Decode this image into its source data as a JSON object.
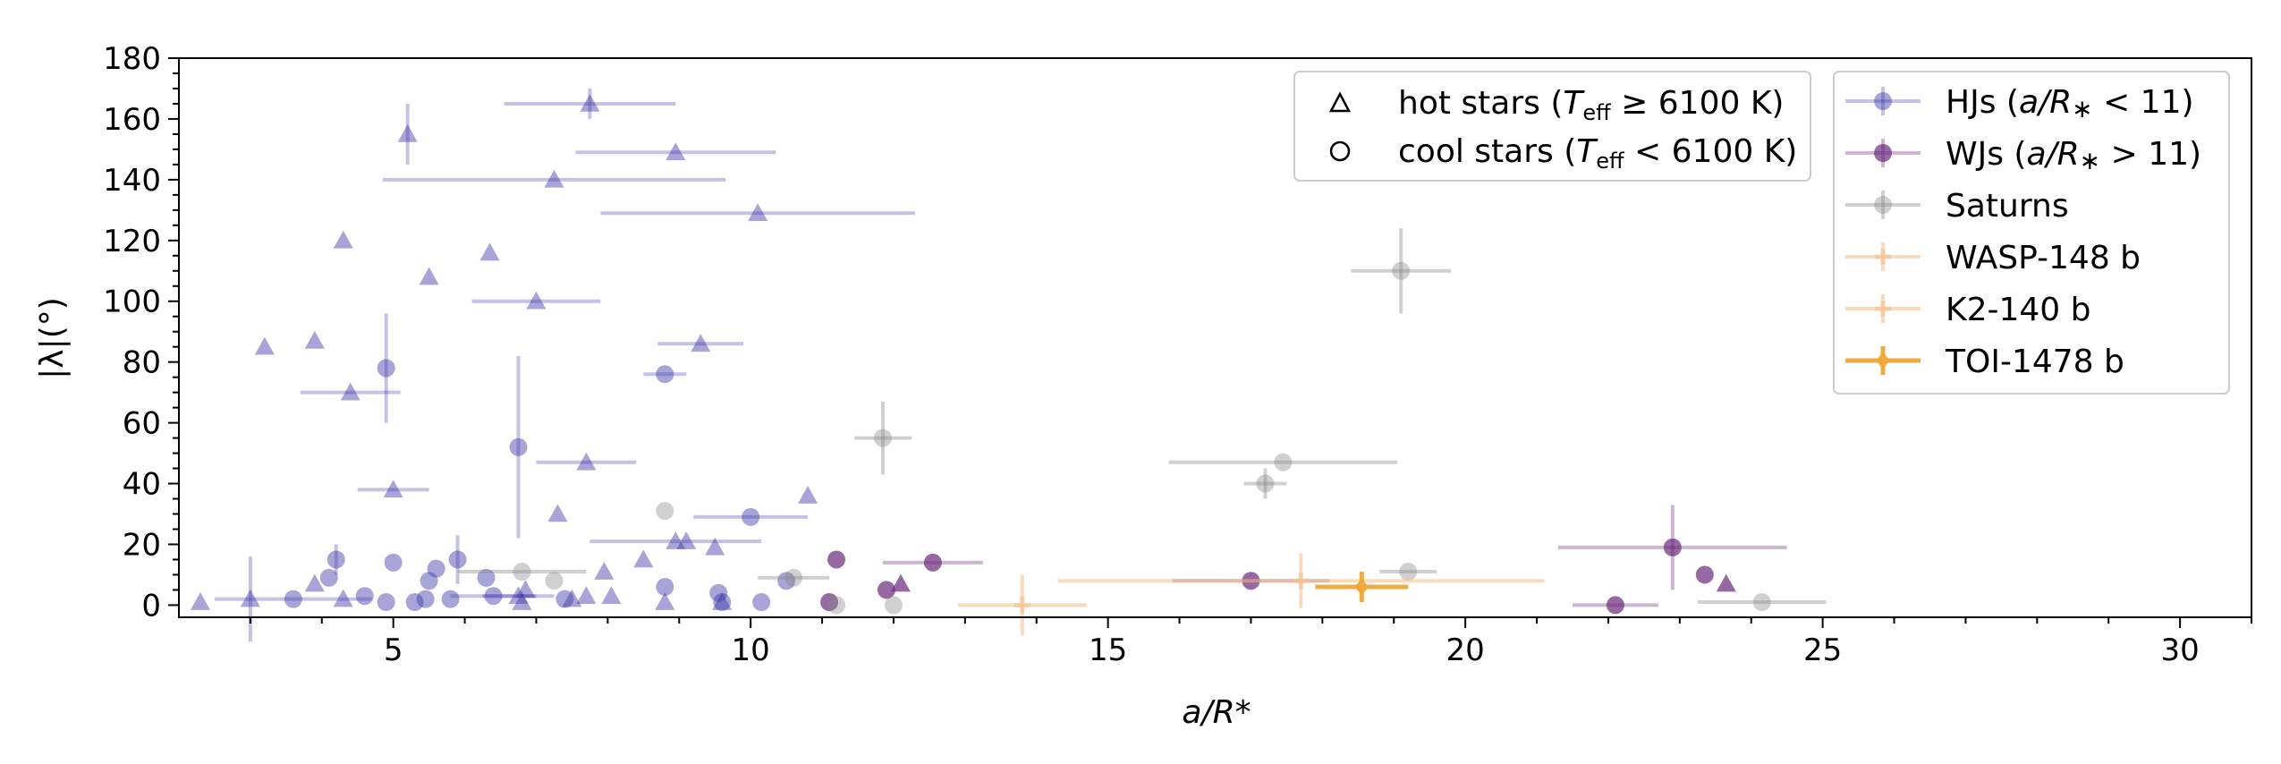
{
  "chart_data": {
    "type": "scatter",
    "xlabel": "a/R*",
    "ylabel": "|λ|(°)",
    "xlim": [
      2,
      31
    ],
    "ylim": [
      -4,
      180
    ],
    "x_ticks": [
      5,
      10,
      15,
      20,
      25,
      30
    ],
    "y_ticks": [
      0,
      20,
      40,
      60,
      80,
      100,
      120,
      140,
      160,
      180
    ],
    "grid": false,
    "colors": {
      "hj": "#3d35a8",
      "wj": "#6b2a7c",
      "saturn": "#8a8a8a",
      "wasp148": "#f5c28e",
      "k2140": "#f5c28e",
      "toi1478": "#eea83a"
    },
    "marker_legend": {
      "placement": "upper-center",
      "entries": [
        {
          "marker": "triangle",
          "label": "hot stars (T_eff ≥ 6100 K)"
        },
        {
          "marker": "circle",
          "label": "cool stars (T_eff < 6100 K)"
        }
      ]
    },
    "legend": {
      "placement": "upper-right",
      "entries": [
        {
          "series": "hj",
          "label": "HJs (a/R* < 11)"
        },
        {
          "series": "wj",
          "label": "WJs (a/R* > 11)"
        },
        {
          "series": "saturn",
          "label": "Saturns"
        },
        {
          "series": "wasp148",
          "label": "WASP-148 b"
        },
        {
          "series": "k2140",
          "label": "K2-140 b"
        },
        {
          "series": "toi1478",
          "label": "TOI-1478 b"
        }
      ]
    },
    "series": [
      {
        "key": "hj",
        "name": "HJs (a/R* < 11)",
        "points": [
          {
            "x": 2.3,
            "y": 1,
            "m": "tri"
          },
          {
            "x": 3.0,
            "y": 2,
            "m": "tri",
            "yerr": 14
          },
          {
            "x": 3.2,
            "y": 85,
            "m": "tri"
          },
          {
            "x": 3.6,
            "y": 2,
            "m": "circ",
            "xerr": 1.1
          },
          {
            "x": 3.9,
            "y": 87,
            "m": "tri"
          },
          {
            "x": 3.9,
            "y": 7,
            "m": "tri"
          },
          {
            "x": 4.1,
            "y": 9,
            "m": "circ"
          },
          {
            "x": 4.2,
            "y": 15,
            "m": "circ",
            "yerr": 5
          },
          {
            "x": 4.3,
            "y": 120,
            "m": "tri"
          },
          {
            "x": 4.3,
            "y": 2,
            "m": "tri"
          },
          {
            "x": 4.4,
            "y": 70,
            "m": "tri",
            "xerr": 0.7
          },
          {
            "x": 4.6,
            "y": 3,
            "m": "circ"
          },
          {
            "x": 4.9,
            "y": 1,
            "m": "circ"
          },
          {
            "x": 4.9,
            "y": 78,
            "m": "circ",
            "yerr": 18
          },
          {
            "x": 5.0,
            "y": 14,
            "m": "circ"
          },
          {
            "x": 5.0,
            "y": 38,
            "m": "tri",
            "xerr": 0.5
          },
          {
            "x": 5.2,
            "y": 155,
            "m": "tri",
            "yerr": 10
          },
          {
            "x": 5.3,
            "y": 1,
            "m": "circ"
          },
          {
            "x": 5.45,
            "y": 2,
            "m": "circ"
          },
          {
            "x": 5.5,
            "y": 108,
            "m": "tri"
          },
          {
            "x": 5.5,
            "y": 8,
            "m": "circ"
          },
          {
            "x": 5.6,
            "y": 12,
            "m": "circ"
          },
          {
            "x": 5.8,
            "y": 2,
            "m": "circ"
          },
          {
            "x": 5.9,
            "y": 15,
            "m": "circ",
            "yerr": 8
          },
          {
            "x": 6.3,
            "y": 9,
            "m": "circ"
          },
          {
            "x": 6.35,
            "y": 116,
            "m": "tri"
          },
          {
            "x": 6.4,
            "y": 3,
            "m": "circ",
            "xerr": 0.6
          },
          {
            "x": 6.75,
            "y": 52,
            "m": "circ",
            "yerr": 30
          },
          {
            "x": 6.75,
            "y": 3,
            "m": "tri",
            "xerr": 0.5
          },
          {
            "x": 6.8,
            "y": 1,
            "m": "tri"
          },
          {
            "x": 6.85,
            "y": 5,
            "m": "tri"
          },
          {
            "x": 7.0,
            "y": 100,
            "m": "tri",
            "xerr": 0.9
          },
          {
            "x": 7.25,
            "y": 140,
            "m": "tri",
            "xerr": 2.4
          },
          {
            "x": 7.3,
            "y": 30,
            "m": "tri"
          },
          {
            "x": 7.4,
            "y": 2,
            "m": "circ"
          },
          {
            "x": 7.5,
            "y": 2,
            "m": "tri"
          },
          {
            "x": 7.7,
            "y": 47,
            "m": "tri",
            "xerr": 0.7
          },
          {
            "x": 7.7,
            "y": 3,
            "m": "tri"
          },
          {
            "x": 7.75,
            "y": 165,
            "m": "tri",
            "xerr": 1.2,
            "yerr": 5
          },
          {
            "x": 7.95,
            "y": 11,
            "m": "tri"
          },
          {
            "x": 8.05,
            "y": 3,
            "m": "tri"
          },
          {
            "x": 8.5,
            "y": 15,
            "m": "tri"
          },
          {
            "x": 8.8,
            "y": 76,
            "m": "circ",
            "xerr": 0.3
          },
          {
            "x": 8.8,
            "y": 6,
            "m": "circ"
          },
          {
            "x": 8.8,
            "y": 1,
            "m": "tri"
          },
          {
            "x": 8.95,
            "y": 149,
            "m": "tri",
            "xerr": 1.4
          },
          {
            "x": 8.95,
            "y": 21,
            "m": "tri",
            "xerr": 1.2
          },
          {
            "x": 9.1,
            "y": 21,
            "m": "tri"
          },
          {
            "x": 9.3,
            "y": 86,
            "m": "tri",
            "xerr": 0.6
          },
          {
            "x": 9.5,
            "y": 19,
            "m": "tri"
          },
          {
            "x": 9.55,
            "y": 4,
            "m": "circ"
          },
          {
            "x": 9.6,
            "y": 1,
            "m": "circ"
          },
          {
            "x": 9.6,
            "y": 1,
            "m": "tri"
          },
          {
            "x": 10.0,
            "y": 29,
            "m": "circ",
            "xerr": 0.8
          },
          {
            "x": 10.1,
            "y": 129,
            "m": "tri",
            "xerr": 2.2
          },
          {
            "x": 10.15,
            "y": 1,
            "m": "circ"
          },
          {
            "x": 10.5,
            "y": 8,
            "m": "circ"
          },
          {
            "x": 10.8,
            "y": 36,
            "m": "tri"
          }
        ]
      },
      {
        "key": "wj",
        "name": "WJs (a/R* > 11)",
        "points": [
          {
            "x": 11.1,
            "y": 1,
            "m": "circ"
          },
          {
            "x": 11.2,
            "y": 15,
            "m": "circ"
          },
          {
            "x": 11.9,
            "y": 5,
            "m": "circ"
          },
          {
            "x": 12.1,
            "y": 7,
            "m": "tri"
          },
          {
            "x": 12.55,
            "y": 14,
            "m": "circ",
            "xerr": 0.7
          },
          {
            "x": 17.0,
            "y": 8,
            "m": "circ",
            "xerr": 1.1
          },
          {
            "x": 22.1,
            "y": 0,
            "m": "circ",
            "xerr": 0.6
          },
          {
            "x": 22.9,
            "y": 19,
            "m": "circ",
            "xerr": 1.6,
            "yerr": 14
          },
          {
            "x": 23.35,
            "y": 10,
            "m": "circ"
          },
          {
            "x": 23.65,
            "y": 7,
            "m": "tri"
          }
        ]
      },
      {
        "key": "saturn",
        "name": "Saturns",
        "points": [
          {
            "x": 6.8,
            "y": 11,
            "m": "circ",
            "xerr": 0.9
          },
          {
            "x": 7.25,
            "y": 8,
            "m": "circ"
          },
          {
            "x": 8.8,
            "y": 31,
            "m": "circ"
          },
          {
            "x": 10.6,
            "y": 9,
            "m": "circ",
            "xerr": 0.5
          },
          {
            "x": 11.2,
            "y": 0,
            "m": "circ"
          },
          {
            "x": 11.85,
            "y": 55,
            "m": "circ",
            "xerr": 0.4,
            "yerr": 12
          },
          {
            "x": 12.0,
            "y": 0,
            "m": "circ"
          },
          {
            "x": 17.2,
            "y": 40,
            "m": "circ",
            "xerr": 0.3,
            "yerr": 5
          },
          {
            "x": 17.45,
            "y": 47,
            "m": "circ",
            "xerr": 1.6
          },
          {
            "x": 19.1,
            "y": 110,
            "m": "circ",
            "xerr": 0.7,
            "yerr": 14
          },
          {
            "x": 19.2,
            "y": 11,
            "m": "circ",
            "xerr": 0.4
          },
          {
            "x": 24.15,
            "y": 1,
            "m": "circ",
            "xerr": 0.9
          }
        ]
      },
      {
        "key": "wasp148",
        "name": "WASP-148 b",
        "points": [
          {
            "x": 17.7,
            "y": 8,
            "m": "plus",
            "xerr": 3.4,
            "yerr": 9
          }
        ]
      },
      {
        "key": "k2140",
        "name": "K2-140 b",
        "points": [
          {
            "x": 13.8,
            "y": 0,
            "m": "plus",
            "xerr": 0.9,
            "yerr": 10
          }
        ]
      },
      {
        "key": "toi1478",
        "name": "TOI-1478 b",
        "points": [
          {
            "x": 18.55,
            "y": 6,
            "m": "diamond",
            "xerr": 0.65,
            "yerr": 5
          }
        ]
      }
    ]
  }
}
